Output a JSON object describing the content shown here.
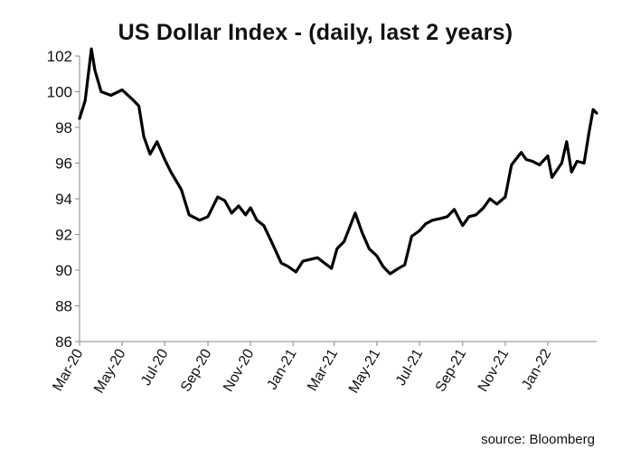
{
  "chart_data": {
    "type": "line",
    "title": "US Dollar Index - (daily, last 2 years)",
    "source": "source: Bloomberg",
    "xlabel": "",
    "ylabel": "",
    "ylim": [
      86,
      102
    ],
    "y_ticks": [
      "86",
      "88",
      "90",
      "92",
      "94",
      "96",
      "98",
      "100",
      "102"
    ],
    "x_ticks": [
      "Mar-20",
      "May-20",
      "Jul-20",
      "Sep-20",
      "Nov-20",
      "Jan-21",
      "Mar-21",
      "May-21",
      "Jul-21",
      "Sep-21",
      "Nov-21",
      "Jan-22"
    ],
    "grid": false,
    "legend": "none",
    "line_color": "#000000",
    "series": [
      {
        "x": [
          "2020-03-01",
          "2020-03-09",
          "2020-03-18",
          "2020-03-23",
          "2020-04-01",
          "2020-04-15",
          "2020-05-01",
          "2020-05-15",
          "2020-05-25",
          "2020-06-01",
          "2020-06-10",
          "2020-06-20",
          "2020-07-01",
          "2020-07-10",
          "2020-07-25",
          "2020-08-05",
          "2020-08-20",
          "2020-09-01",
          "2020-09-15",
          "2020-09-25",
          "2020-10-05",
          "2020-10-15",
          "2020-10-25",
          "2020-11-01",
          "2020-11-10",
          "2020-11-20",
          "2020-12-01",
          "2020-12-15",
          "2020-12-25",
          "2021-01-05",
          "2021-01-15",
          "2021-01-25",
          "2021-02-05",
          "2021-02-15",
          "2021-02-25",
          "2021-03-05",
          "2021-03-15",
          "2021-03-31",
          "2021-04-10",
          "2021-04-20",
          "2021-05-01",
          "2021-05-10",
          "2021-05-20",
          "2021-06-01",
          "2021-06-10",
          "2021-06-20",
          "2021-07-01",
          "2021-07-10",
          "2021-07-20",
          "2021-08-01",
          "2021-08-10",
          "2021-08-20",
          "2021-09-01",
          "2021-09-10",
          "2021-09-20",
          "2021-10-01",
          "2021-10-10",
          "2021-10-20",
          "2021-11-01",
          "2021-11-10",
          "2021-11-20",
          "2021-11-24",
          "2021-12-01",
          "2021-12-10",
          "2021-12-20",
          "2022-01-01",
          "2022-01-07",
          "2022-01-14",
          "2022-01-21",
          "2022-01-28",
          "2022-02-04",
          "2022-02-12",
          "2022-02-22",
          "2022-03-01",
          "2022-03-07",
          "2022-03-12"
        ],
        "values": [
          98.5,
          99.5,
          102.4,
          101.2,
          100.0,
          99.8,
          100.1,
          99.6,
          99.2,
          97.5,
          96.5,
          97.2,
          96.2,
          95.5,
          94.5,
          93.1,
          92.8,
          93.0,
          94.1,
          93.9,
          93.2,
          93.6,
          93.1,
          93.5,
          92.8,
          92.5,
          91.6,
          90.4,
          90.2,
          89.9,
          90.5,
          90.6,
          90.7,
          90.4,
          90.1,
          91.2,
          91.6,
          93.2,
          92.1,
          91.2,
          90.8,
          90.2,
          89.8,
          90.1,
          90.3,
          91.9,
          92.2,
          92.6,
          92.8,
          92.9,
          93.0,
          93.4,
          92.5,
          93.0,
          93.1,
          93.5,
          94.0,
          93.7,
          94.1,
          95.9,
          96.4,
          96.6,
          96.2,
          96.1,
          95.9,
          96.4,
          95.2,
          95.6,
          96.0,
          97.2,
          95.5,
          96.1,
          96.0,
          97.7,
          99.0,
          98.8
        ],
        "unused_key_check": ""
      }
    ]
  }
}
